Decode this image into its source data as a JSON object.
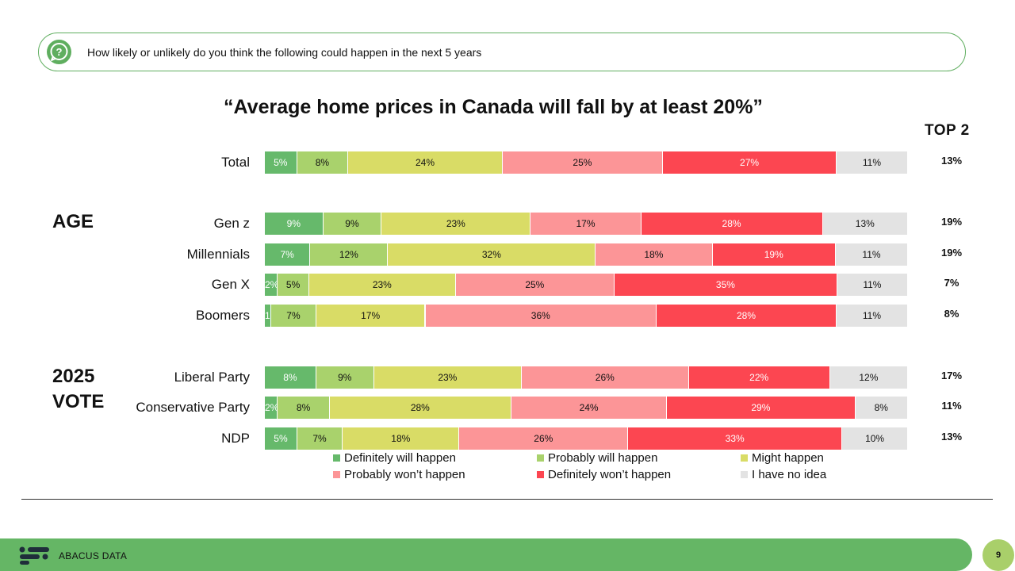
{
  "question": "How likely or unlikely do you think the following could happen in the next 5 years",
  "top2_header": "TOP 2",
  "groups": {
    "age": "AGE",
    "vote": "2025 VOTE"
  },
  "brand": "ABACUS DATA",
  "page_number": "9",
  "chart_data": {
    "type": "bar",
    "orientation": "horizontal",
    "stacked": true,
    "percent_stacked": true,
    "title": "“Average home prices in Canada will fall by at least 20%”",
    "legend_position": "bottom",
    "categories": [
      "Total",
      "Gen z",
      "Millennials",
      "Gen X",
      "Boomers",
      "Liberal Party",
      "Conservative Party",
      "NDP"
    ],
    "series": [
      {
        "name": "Definitely will happen",
        "color": "#66b96b",
        "text_color": "#ffffff",
        "values": [
          5,
          9,
          7,
          2,
          1,
          8,
          2,
          5
        ]
      },
      {
        "name": "Probably will happen",
        "color": "#a9d26c",
        "text_color": "#111111",
        "values": [
          8,
          9,
          12,
          5,
          7,
          9,
          8,
          7
        ]
      },
      {
        "name": "Might happen",
        "color": "#d9dc66",
        "text_color": "#111111",
        "values": [
          24,
          23,
          32,
          23,
          17,
          23,
          28,
          18
        ]
      },
      {
        "name": "Probably won’t happen",
        "color": "#fc9597",
        "text_color": "#111111",
        "values": [
          25,
          17,
          18,
          25,
          36,
          26,
          24,
          26
        ]
      },
      {
        "name": "Definitely won’t happen",
        "color": "#fc4651",
        "text_color": "#ffffff",
        "values": [
          27,
          28,
          19,
          35,
          28,
          22,
          29,
          33
        ]
      },
      {
        "name": "I have no idea",
        "color": "#e3e3e3",
        "text_color": "#111111",
        "values": [
          11,
          13,
          11,
          11,
          11,
          12,
          8,
          10
        ]
      }
    ],
    "top2": [
      "13%",
      "19%",
      "19%",
      "7%",
      "8%",
      "17%",
      "11%",
      "13%"
    ]
  }
}
